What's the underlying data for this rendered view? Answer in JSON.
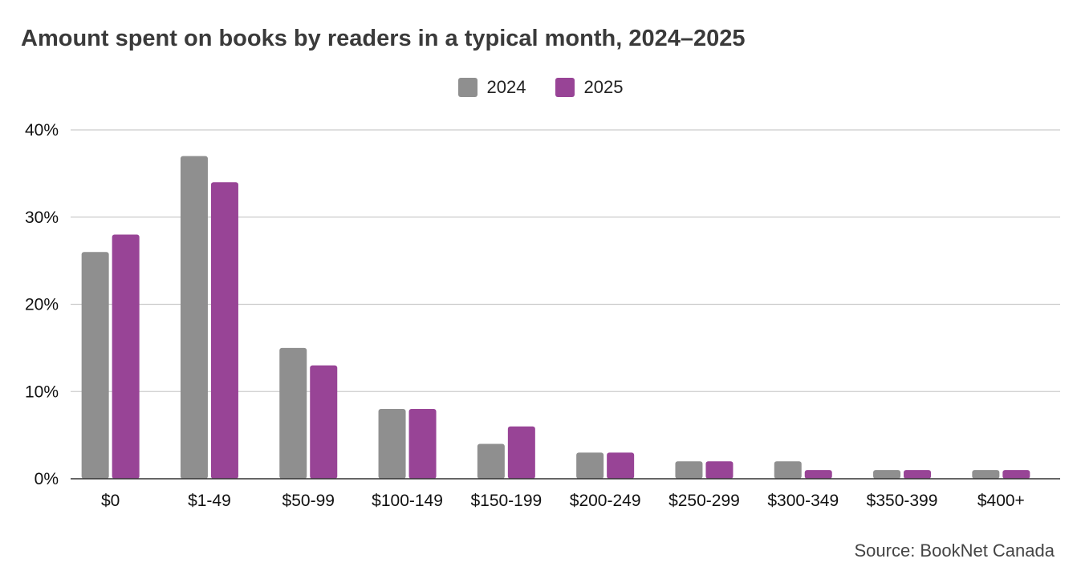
{
  "colors": {
    "series_2024": "#8f8f8f",
    "series_2025": "#984496",
    "grid": "#cccccc",
    "axis": "#333333"
  },
  "source": "Source: BookNet Canada",
  "chart_data": {
    "type": "bar",
    "title": "Amount spent on books by readers in a typical month, 2024–2025",
    "xlabel": "",
    "ylabel": "",
    "ylim": [
      0,
      40
    ],
    "yticks": [
      0,
      10,
      20,
      30,
      40
    ],
    "ytick_labels": [
      "0%",
      "10%",
      "20%",
      "30%",
      "40%"
    ],
    "grid": true,
    "legend_position": "top-center",
    "categories": [
      "$0",
      "$1-49",
      "$50-99",
      "$100-149",
      "$150-199",
      "$200-249",
      "$250-299",
      "$300-349",
      "$350-399",
      "$400+"
    ],
    "series": [
      {
        "name": "2024",
        "values": [
          26,
          37,
          15,
          8,
          4,
          3,
          2,
          2,
          1,
          1
        ]
      },
      {
        "name": "2025",
        "values": [
          28,
          34,
          13,
          8,
          6,
          3,
          2,
          1,
          1,
          1
        ]
      }
    ]
  }
}
